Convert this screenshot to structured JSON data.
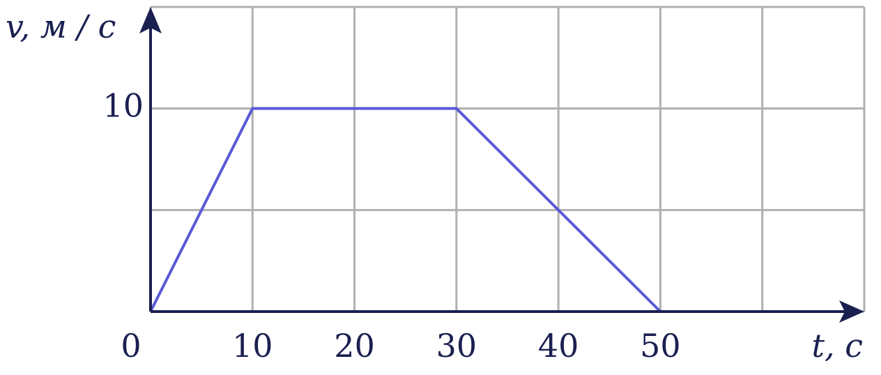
{
  "chart_data": {
    "type": "line",
    "x_label": "t, с",
    "y_label": "v, м / с",
    "x": [
      0,
      10,
      30,
      50
    ],
    "values": [
      0,
      10,
      10,
      0
    ],
    "color": "#5a5ad8",
    "xlim": [
      0,
      70
    ],
    "ylim": [
      0,
      15
    ],
    "xticks": [
      0,
      10,
      20,
      30,
      40,
      50
    ],
    "yticks": [
      10
    ],
    "grid": true,
    "grid_x": [
      0,
      10,
      20,
      30,
      40,
      50,
      60,
      70
    ],
    "grid_y": [
      0,
      5,
      10,
      15
    ]
  }
}
